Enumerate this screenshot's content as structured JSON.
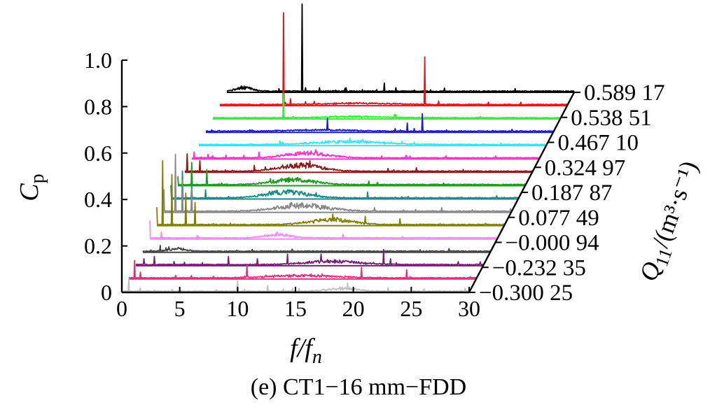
{
  "chart_data": {
    "type": "waterfall",
    "caption": "(e) CT1−16 mm−FDD",
    "xlabel_main": "f/f",
    "xlabel_sub": "n",
    "ylabel_main": "C",
    "ylabel_sub": "p",
    "zlabel_main": "Q",
    "zlabel_sub": "11",
    "zlabel_unit": "/(m³·s⁻¹)",
    "xlim": [
      0,
      30
    ],
    "ylim": [
      0,
      1.0
    ],
    "x_ticks": [
      0,
      5,
      10,
      15,
      20,
      25,
      30
    ],
    "x_tick_labels": [
      "0",
      "5",
      "10",
      "15",
      "20",
      "25",
      "30"
    ],
    "y_ticks": [
      0,
      0.2,
      0.4,
      0.6,
      0.8,
      1.0
    ],
    "y_tick_labels": [
      "0",
      "0.2",
      "0.4",
      "0.6",
      "0.8",
      "1.0"
    ],
    "z_tick_labels": [
      "−0.300 25",
      "−0.232 35",
      "−0.000 94",
      "0.077 49",
      "0.187 87",
      "0.324 97",
      "0.467 10",
      "0.538 51",
      "0.589 17"
    ],
    "series": [
      {
        "color": "#c0c0c0",
        "peaks": [
          [
            0.6,
            0.06
          ],
          [
            1.6,
            0.02
          ],
          [
            10.0,
            0.05
          ],
          [
            12.6,
            0.03
          ],
          [
            19.5,
            0.04
          ],
          [
            23.0,
            0.02
          ]
        ],
        "hump": [
          19,
          1.8,
          0.012
        ]
      },
      {
        "color": "#ee2a7b",
        "peaks": [
          [
            0.5,
            0.08
          ],
          [
            1.0,
            0.03
          ],
          [
            10.2,
            0.06
          ],
          [
            20.1,
            0.05
          ],
          [
            24.0,
            0.04
          ]
        ],
        "hump": [
          15,
          4,
          0.01
        ]
      },
      {
        "color": "#7b1c7b",
        "peaks": [
          [
            0.7,
            0.03
          ],
          [
            1.6,
            0.04
          ],
          [
            8.0,
            0.04
          ],
          [
            10.5,
            0.03
          ],
          [
            13.1,
            0.05
          ],
          [
            16.0,
            0.05
          ],
          [
            21.4,
            0.07
          ],
          [
            22.0,
            0.03
          ]
        ],
        "hump": [
          17,
          3,
          0.014
        ]
      },
      {
        "color": "#444444",
        "peaks": [
          [
            0.7,
            0.01
          ],
          [
            1.5,
            0.03
          ],
          [
            2.0,
            0.02
          ]
        ],
        "hump": [
          3,
          1,
          0.01
        ]
      },
      {
        "color": "#ff88ff",
        "peaks": [
          [
            0.0,
            0.08
          ],
          [
            1.0,
            0.03
          ],
          [
            11.0,
            0.03
          ],
          [
            16.7,
            0.02
          ]
        ],
        "hump": [
          11,
          1.5,
          0.015
        ]
      },
      {
        "color": "#808000",
        "peaks": [
          [
            0.0,
            0.08
          ],
          [
            0.5,
            0.28
          ],
          [
            1.3,
            0.22
          ],
          [
            2.5,
            0.14
          ],
          [
            3.3,
            0.1
          ],
          [
            15.2,
            0.05
          ],
          [
            18.0,
            0.04
          ],
          [
            21.0,
            0.03
          ]
        ],
        "hump": [
          15,
          2.5,
          0.02
        ]
      },
      {
        "color": "#888888",
        "peaks": [
          [
            0.0,
            0.1
          ],
          [
            1.0,
            0.25
          ],
          [
            1.6,
            0.14
          ],
          [
            2.4,
            0.1
          ],
          [
            12.5,
            0.03
          ],
          [
            18.2,
            0.02
          ],
          [
            24.0,
            0.02
          ]
        ],
        "hump": [
          12,
          3,
          0.025
        ]
      },
      {
        "color": "#1a8a8a",
        "peaks": [
          [
            0.0,
            0.06
          ],
          [
            1.0,
            0.12
          ],
          [
            1.8,
            0.06
          ],
          [
            3.0,
            0.04
          ],
          [
            10.1,
            0.04
          ],
          [
            17.0,
            0.03
          ]
        ],
        "hump": [
          10,
          2.5,
          0.025
        ]
      },
      {
        "color": "#1f9a1f",
        "peaks": [
          [
            0.0,
            0.04
          ],
          [
            1.2,
            0.1
          ],
          [
            2.5,
            0.07
          ],
          [
            8.0,
            0.03
          ],
          [
            10.2,
            0.03
          ],
          [
            16.5,
            0.02
          ]
        ],
        "hump": [
          10,
          2.5,
          0.02
        ]
      },
      {
        "color": "#8b1a1a",
        "peaks": [
          [
            0.2,
            0.08
          ],
          [
            1.3,
            0.05
          ],
          [
            6.0,
            0.03
          ],
          [
            10.8,
            0.05
          ],
          [
            20.0,
            0.02
          ]
        ],
        "hump": [
          10,
          2.5,
          0.025
        ]
      },
      {
        "color": "#ff33cc",
        "peaks": [
          [
            0.2,
            0.03
          ],
          [
            1.4,
            0.02
          ],
          [
            5.8,
            0.03
          ],
          [
            10.7,
            0.04
          ],
          [
            18.5,
            0.015
          ]
        ],
        "hump": [
          10,
          2.5,
          0.02
        ]
      },
      {
        "color": "#33e5ff",
        "peaks": [
          [
            7.0,
            0.02
          ],
          [
            12.0,
            0.02
          ],
          [
            18.6,
            0.015
          ]
        ],
        "hump": [
          13,
          4,
          0.012
        ]
      },
      {
        "color": "#1a1acc",
        "peaks": [
          [
            0.5,
            0.01
          ],
          [
            4.0,
            0.01
          ],
          [
            10.5,
            0.06
          ],
          [
            17.4,
            0.04
          ],
          [
            18.7,
            0.08
          ]
        ],
        "hump": [
          10,
          4,
          0.005
        ]
      },
      {
        "color": "#33ee33",
        "peaks": [
          [
            6.1,
            0.11
          ],
          [
            10.2,
            0.01
          ],
          [
            15.7,
            0.02
          ],
          [
            23.1,
            0.01
          ]
        ],
        "hump": [
          12,
          4,
          0.005
        ]
      },
      {
        "color": "#ee1111",
        "peaks": [
          [
            5.5,
            0.4
          ],
          [
            6.1,
            0.03
          ],
          [
            11.5,
            0.01
          ],
          [
            17.7,
            0.21
          ],
          [
            18.9,
            0.02
          ]
        ],
        "hump": [
          12,
          4,
          0.005
        ]
      },
      {
        "color": "#000000",
        "peaks": [
          [
            6.5,
            0.38
          ],
          [
            6.8,
            0.02
          ],
          [
            8.0,
            0.02
          ],
          [
            10.3,
            0.02
          ],
          [
            13.6,
            0.04
          ],
          [
            14.6,
            0.02
          ]
        ],
        "hump": [
          1.5,
          1,
          0.015
        ]
      }
    ]
  }
}
